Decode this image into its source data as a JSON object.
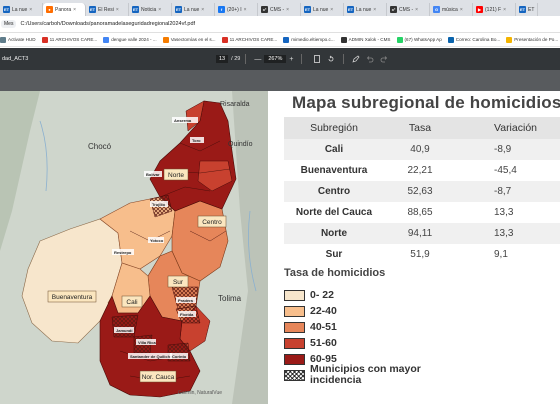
{
  "tabs": [
    {
      "label": "La nue",
      "fav": "ET",
      "color": "#1565c0",
      "active": false
    },
    {
      "label": "Panora",
      "fav": "●",
      "color": "#ff6d00",
      "active": true
    },
    {
      "label": "El Resi",
      "fav": "ET",
      "color": "#1565c0",
      "active": false
    },
    {
      "label": "Noticia",
      "fav": "ET",
      "color": "#1565c0",
      "active": false
    },
    {
      "label": "La nue",
      "fav": "ET",
      "color": "#1565c0",
      "active": false
    },
    {
      "label": "(20+) I",
      "fav": "f",
      "color": "#1877f2",
      "active": false
    },
    {
      "label": "CMS -",
      "fav": "x²",
      "color": "#333333",
      "active": false
    },
    {
      "label": "La nue",
      "fav": "ET",
      "color": "#1565c0",
      "active": false
    },
    {
      "label": "La nue",
      "fav": "ET",
      "color": "#1565c0",
      "active": false
    },
    {
      "label": "CMS -",
      "fav": "x²",
      "color": "#333333",
      "active": false
    },
    {
      "label": "música",
      "fav": "G",
      "color": "#4285f4",
      "active": false
    },
    {
      "label": "(121) F",
      "fav": "▶",
      "color": "#ff0000",
      "active": false
    },
    {
      "label": "ET",
      "fav": "ET",
      "color": "#1565c0",
      "active": false
    }
  ],
  "address": {
    "label": "Mes",
    "url": "C:/Users/carboh/Downloads/panoramadelaseguridadregional2024vf.pdf"
  },
  "bookmarks": [
    {
      "label": "Activate HUD",
      "icon": "gear-icon",
      "color": "#607d8b"
    },
    {
      "label": "11 ARCHIVOS CARE...",
      "icon": "gmail-icon",
      "color": "#d93025"
    },
    {
      "label": "dengue valle 2024 - ...",
      "icon": "google-icon",
      "color": "#4285f4"
    },
    {
      "label": "Vasectomías en el s...",
      "icon": "blogger-icon",
      "color": "#f57c00"
    },
    {
      "label": "11 ARCHIVOS CARE...",
      "icon": "gmail-icon",
      "color": "#d93025"
    },
    {
      "label": "mimedio.eltiempo.c...",
      "icon": "et-icon",
      "color": "#1565c0"
    },
    {
      "label": "ADMIN Xalok - CMS",
      "icon": "cms-icon",
      "color": "#333333"
    },
    {
      "label": "(67) WhatsApp Ap",
      "icon": "whatsapp-icon",
      "color": "#25d366"
    },
    {
      "label": "Correo: Carolina Bo...",
      "icon": "outlook-icon",
      "color": "#0a64ad"
    },
    {
      "label": "Presentación de Po...",
      "icon": "docs-icon",
      "color": "#f4b400"
    }
  ],
  "pdf": {
    "doc_title": "dad_ACT3",
    "page_current": "13",
    "page_sep": "/",
    "page_total": "29",
    "zoom_minus": "—",
    "zoom": "267%",
    "zoom_plus": "+"
  },
  "map": {
    "country_labels": [
      "Chocó",
      "Tolima",
      "Risaralda",
      "Quindío"
    ],
    "subregion_labels": [
      "Norte",
      "Centro",
      "Sur",
      "Cali",
      "Buenaventura",
      "Nor. Cauca"
    ],
    "municipality_labels": [
      "Anserma",
      "Toro",
      "Bolívar",
      "Trujillo",
      "Yotoco",
      "Restrepo",
      "Pradera",
      "Florida",
      "Jamundí",
      "Villa Rica",
      "Santander de Quilichao",
      "Corinto"
    ],
    "attribution": "Garmin, NaturalVue"
  },
  "panel": {
    "title": "Mapa subregional de homicidios",
    "headers": [
      "Subregión",
      "Tasa",
      "Variación"
    ],
    "rows": [
      {
        "name": "Cali",
        "tasa": "40,9",
        "var": "-8,9"
      },
      {
        "name": "Buenaventura",
        "tasa": "22,21",
        "var": "-45,4"
      },
      {
        "name": "Centro",
        "tasa": "52,63",
        "var": "-8,7"
      },
      {
        "name": "Norte del Cauca",
        "tasa": "88,65",
        "var": "13,3"
      },
      {
        "name": "Norte",
        "tasa": "94,11",
        "var": "13,3"
      },
      {
        "name": "Sur",
        "tasa": "51,9",
        "var": "9,1"
      }
    ],
    "legend_title": "Tasa de homicidios",
    "legend": [
      {
        "label": "0- 22",
        "color": "#f7e6cc"
      },
      {
        "label": "22-40",
        "color": "#f7be8c"
      },
      {
        "label": "40-51",
        "color": "#e6865a"
      },
      {
        "label": "51-60",
        "color": "#c8412f"
      },
      {
        "label": "60-95",
        "color": "#9a1a17"
      },
      {
        "label": "Municipios con mayor incidencia",
        "color": "hatch"
      }
    ]
  }
}
